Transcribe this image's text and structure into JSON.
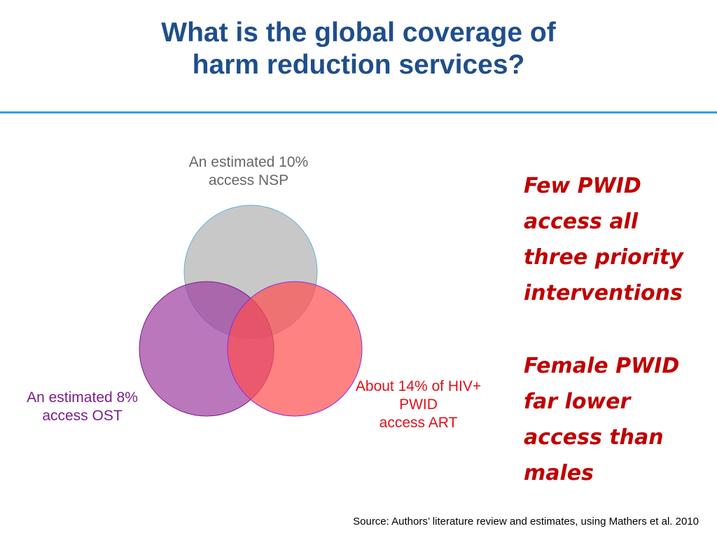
{
  "title": {
    "line1": "What is the global coverage of",
    "line2": "harm reduction services?"
  },
  "venn": {
    "circles": [
      {
        "id": "nsp",
        "fill": "#c8c8c8",
        "stroke": "#5ab4e0"
      },
      {
        "id": "ost",
        "fill": "#9e3d9e",
        "stroke": "#7a1f8a"
      },
      {
        "id": "art",
        "fill": "#ff4d4d",
        "stroke": "#8a2be2"
      }
    ],
    "labels": {
      "nsp": {
        "line1": "An estimated 10%",
        "line2": "access NSP"
      },
      "ost": {
        "line1": "An estimated 8%",
        "line2": "access OST"
      },
      "art": {
        "line1": "About 14% of HIV+",
        "line2": "PWID",
        "line3": "access ART"
      }
    }
  },
  "callout": {
    "block1": [
      "Few PWID",
      "access all",
      "three priority",
      "interventions"
    ],
    "block2": [
      "Female PWID",
      "far lower",
      "access than",
      "males"
    ]
  },
  "source": "Source:  Authors’ literature review and estimates, using Mathers et al. 2010",
  "colors": {
    "title": "#1f4e8c",
    "rule": "#29a3e0",
    "callout": "#c00000"
  }
}
